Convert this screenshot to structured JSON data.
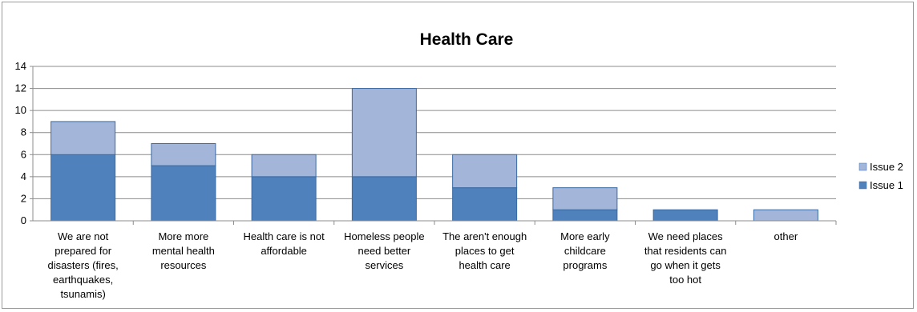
{
  "chart_data": {
    "type": "bar",
    "stacked": true,
    "title": "Health Care",
    "categories": [
      "We are not prepared for disasters (fires, earthquakes, tsunamis)",
      "More more mental health resources",
      "Health care is not affordable",
      "Homeless people need better services",
      "The aren't enough places to get health care",
      "More early childcare programs",
      "We need places that residents can go when it gets too hot",
      "other"
    ],
    "category_lines": [
      [
        "We are not",
        "prepared for",
        "disasters (fires,",
        "earthquakes,",
        "tsunamis)"
      ],
      [
        "More more",
        "mental health",
        "resources"
      ],
      [
        "Health care is not",
        "affordable"
      ],
      [
        "Homeless people",
        "need better",
        "services"
      ],
      [
        "The aren't enough",
        "places to get",
        "health care"
      ],
      [
        "More early",
        "childcare",
        "programs"
      ],
      [
        "We need places",
        "that residents can",
        "go when it gets",
        "too hot"
      ],
      [
        "other"
      ]
    ],
    "series": [
      {
        "name": "Issue 1",
        "color": "#4f81bd",
        "values": [
          6,
          5,
          4,
          4,
          3,
          1,
          1,
          0
        ]
      },
      {
        "name": "Issue 2",
        "color": "#a3b6d9",
        "values": [
          3,
          2,
          2,
          8,
          3,
          2,
          0,
          1
        ]
      }
    ],
    "ylim": [
      0,
      14
    ],
    "yticks": [
      0,
      2,
      4,
      6,
      8,
      10,
      12,
      14
    ],
    "grid": true,
    "legend": "right",
    "xlabel": "",
    "ylabel": ""
  }
}
